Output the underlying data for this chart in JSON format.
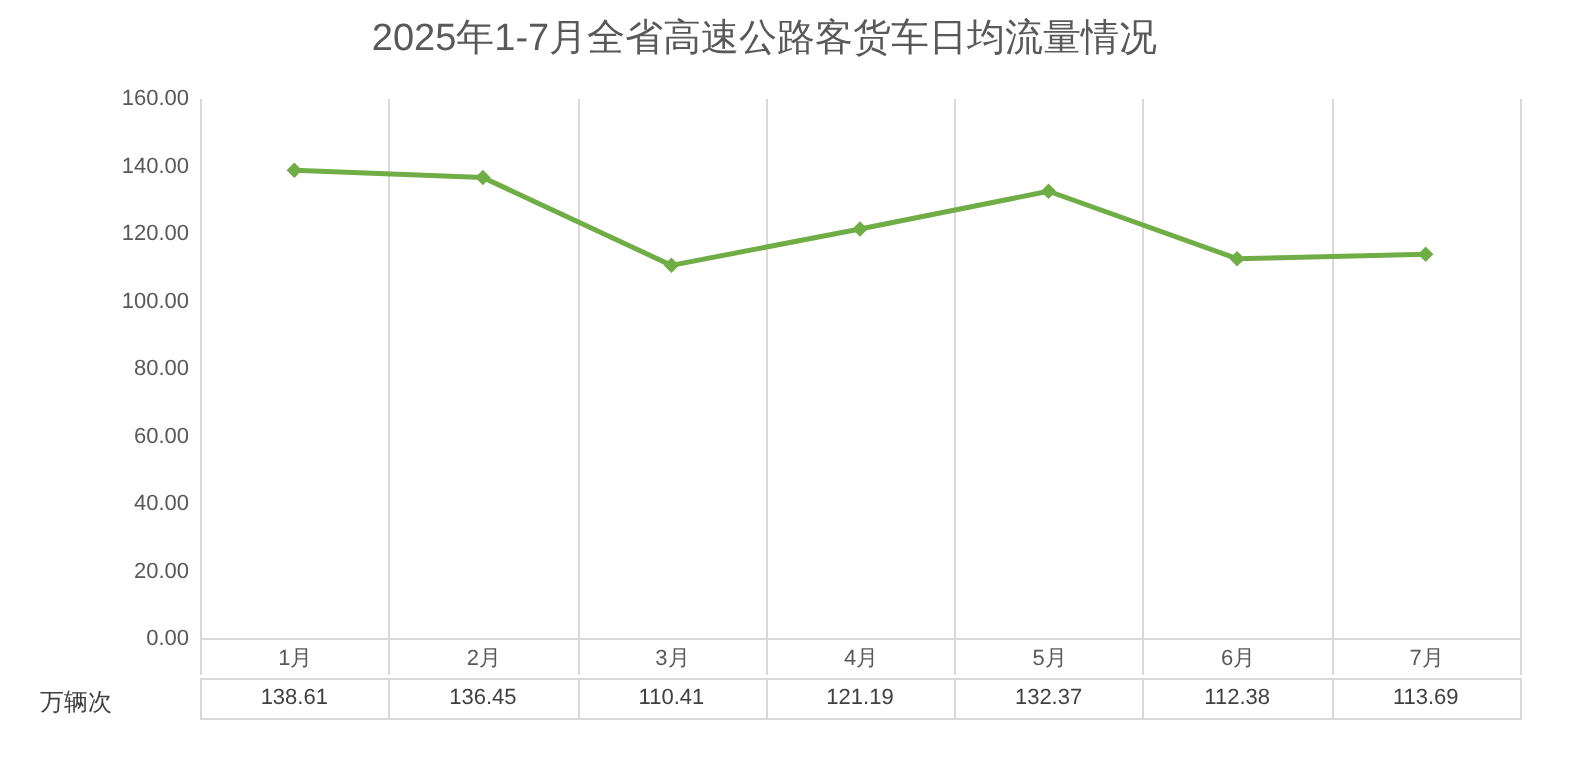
{
  "chart_data": {
    "type": "line",
    "title": "2025年1-7月全省高速公路客货车日均流量情况",
    "categories": [
      "1月",
      "2月",
      "3月",
      "4月",
      "5月",
      "6月",
      "7月"
    ],
    "series": [
      {
        "name": "万辆次",
        "color": "#70ad47",
        "values": [
          138.61,
          136.45,
          110.41,
          121.19,
          132.37,
          112.38,
          113.69
        ]
      }
    ],
    "ylim": [
      0,
      160
    ],
    "yticks": [
      {
        "value": 0,
        "label": "0.00"
      },
      {
        "value": 20,
        "label": "20.00"
      },
      {
        "value": 40,
        "label": "40.00"
      },
      {
        "value": 60,
        "label": "60.00"
      },
      {
        "value": 80,
        "label": "80.00"
      },
      {
        "value": 100,
        "label": "100.00"
      },
      {
        "value": 120,
        "label": "120.00"
      },
      {
        "value": 140,
        "label": "140.00"
      },
      {
        "value": 160,
        "label": "160.00"
      }
    ],
    "grid": "x",
    "marker": "diamond",
    "legend": "bottom left",
    "data_labels": true
  }
}
